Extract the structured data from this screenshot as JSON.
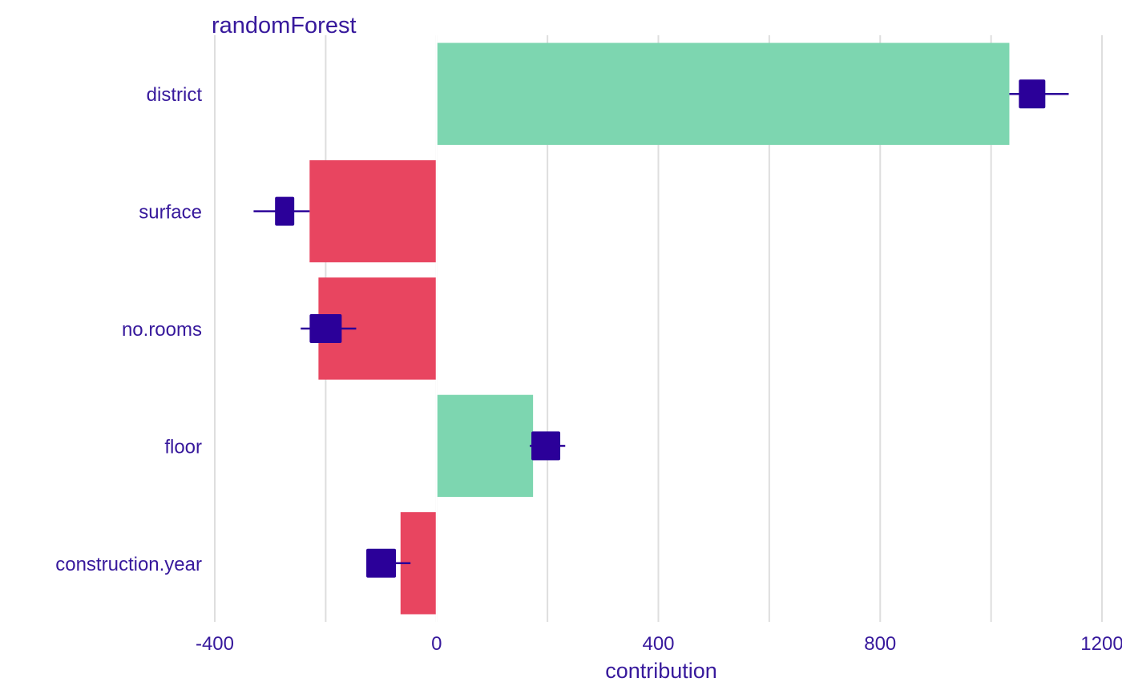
{
  "chart_data": {
    "type": "bar",
    "title": "randomForest",
    "xlabel": "contribution",
    "ylabel": "",
    "xlim": [
      -400,
      1200
    ],
    "x_ticks": [
      -400,
      0,
      400,
      800,
      1200
    ],
    "x_tick_labels": [
      "-400",
      "0",
      "400",
      "800",
      "1200"
    ],
    "x_minor_gridlines": [
      -200,
      200,
      600,
      1000
    ],
    "grid": true,
    "legend": "none",
    "categories": [
      "district",
      "surface",
      "no.rooms",
      "floor",
      "construction.year"
    ],
    "values": [
      1033,
      -229,
      -213,
      174,
      -65
    ],
    "points": [
      {
        "category": "district",
        "mean": 1074,
        "min": 1033,
        "max": 1140
      },
      {
        "category": "surface",
        "mean": -274,
        "min": -330,
        "max": -229
      },
      {
        "category": "no.rooms",
        "mean": -200,
        "min": -245,
        "max": -145
      },
      {
        "category": "floor",
        "mean": 197,
        "min": 168,
        "max": 232
      },
      {
        "category": "construction.year",
        "mean": -100,
        "min": -125,
        "max": -47
      }
    ],
    "colors": {
      "positive": "#7dd6b0",
      "negative": "#e84560",
      "point": "#2b0099",
      "text": "#37199c",
      "grid": "#dedede"
    }
  }
}
